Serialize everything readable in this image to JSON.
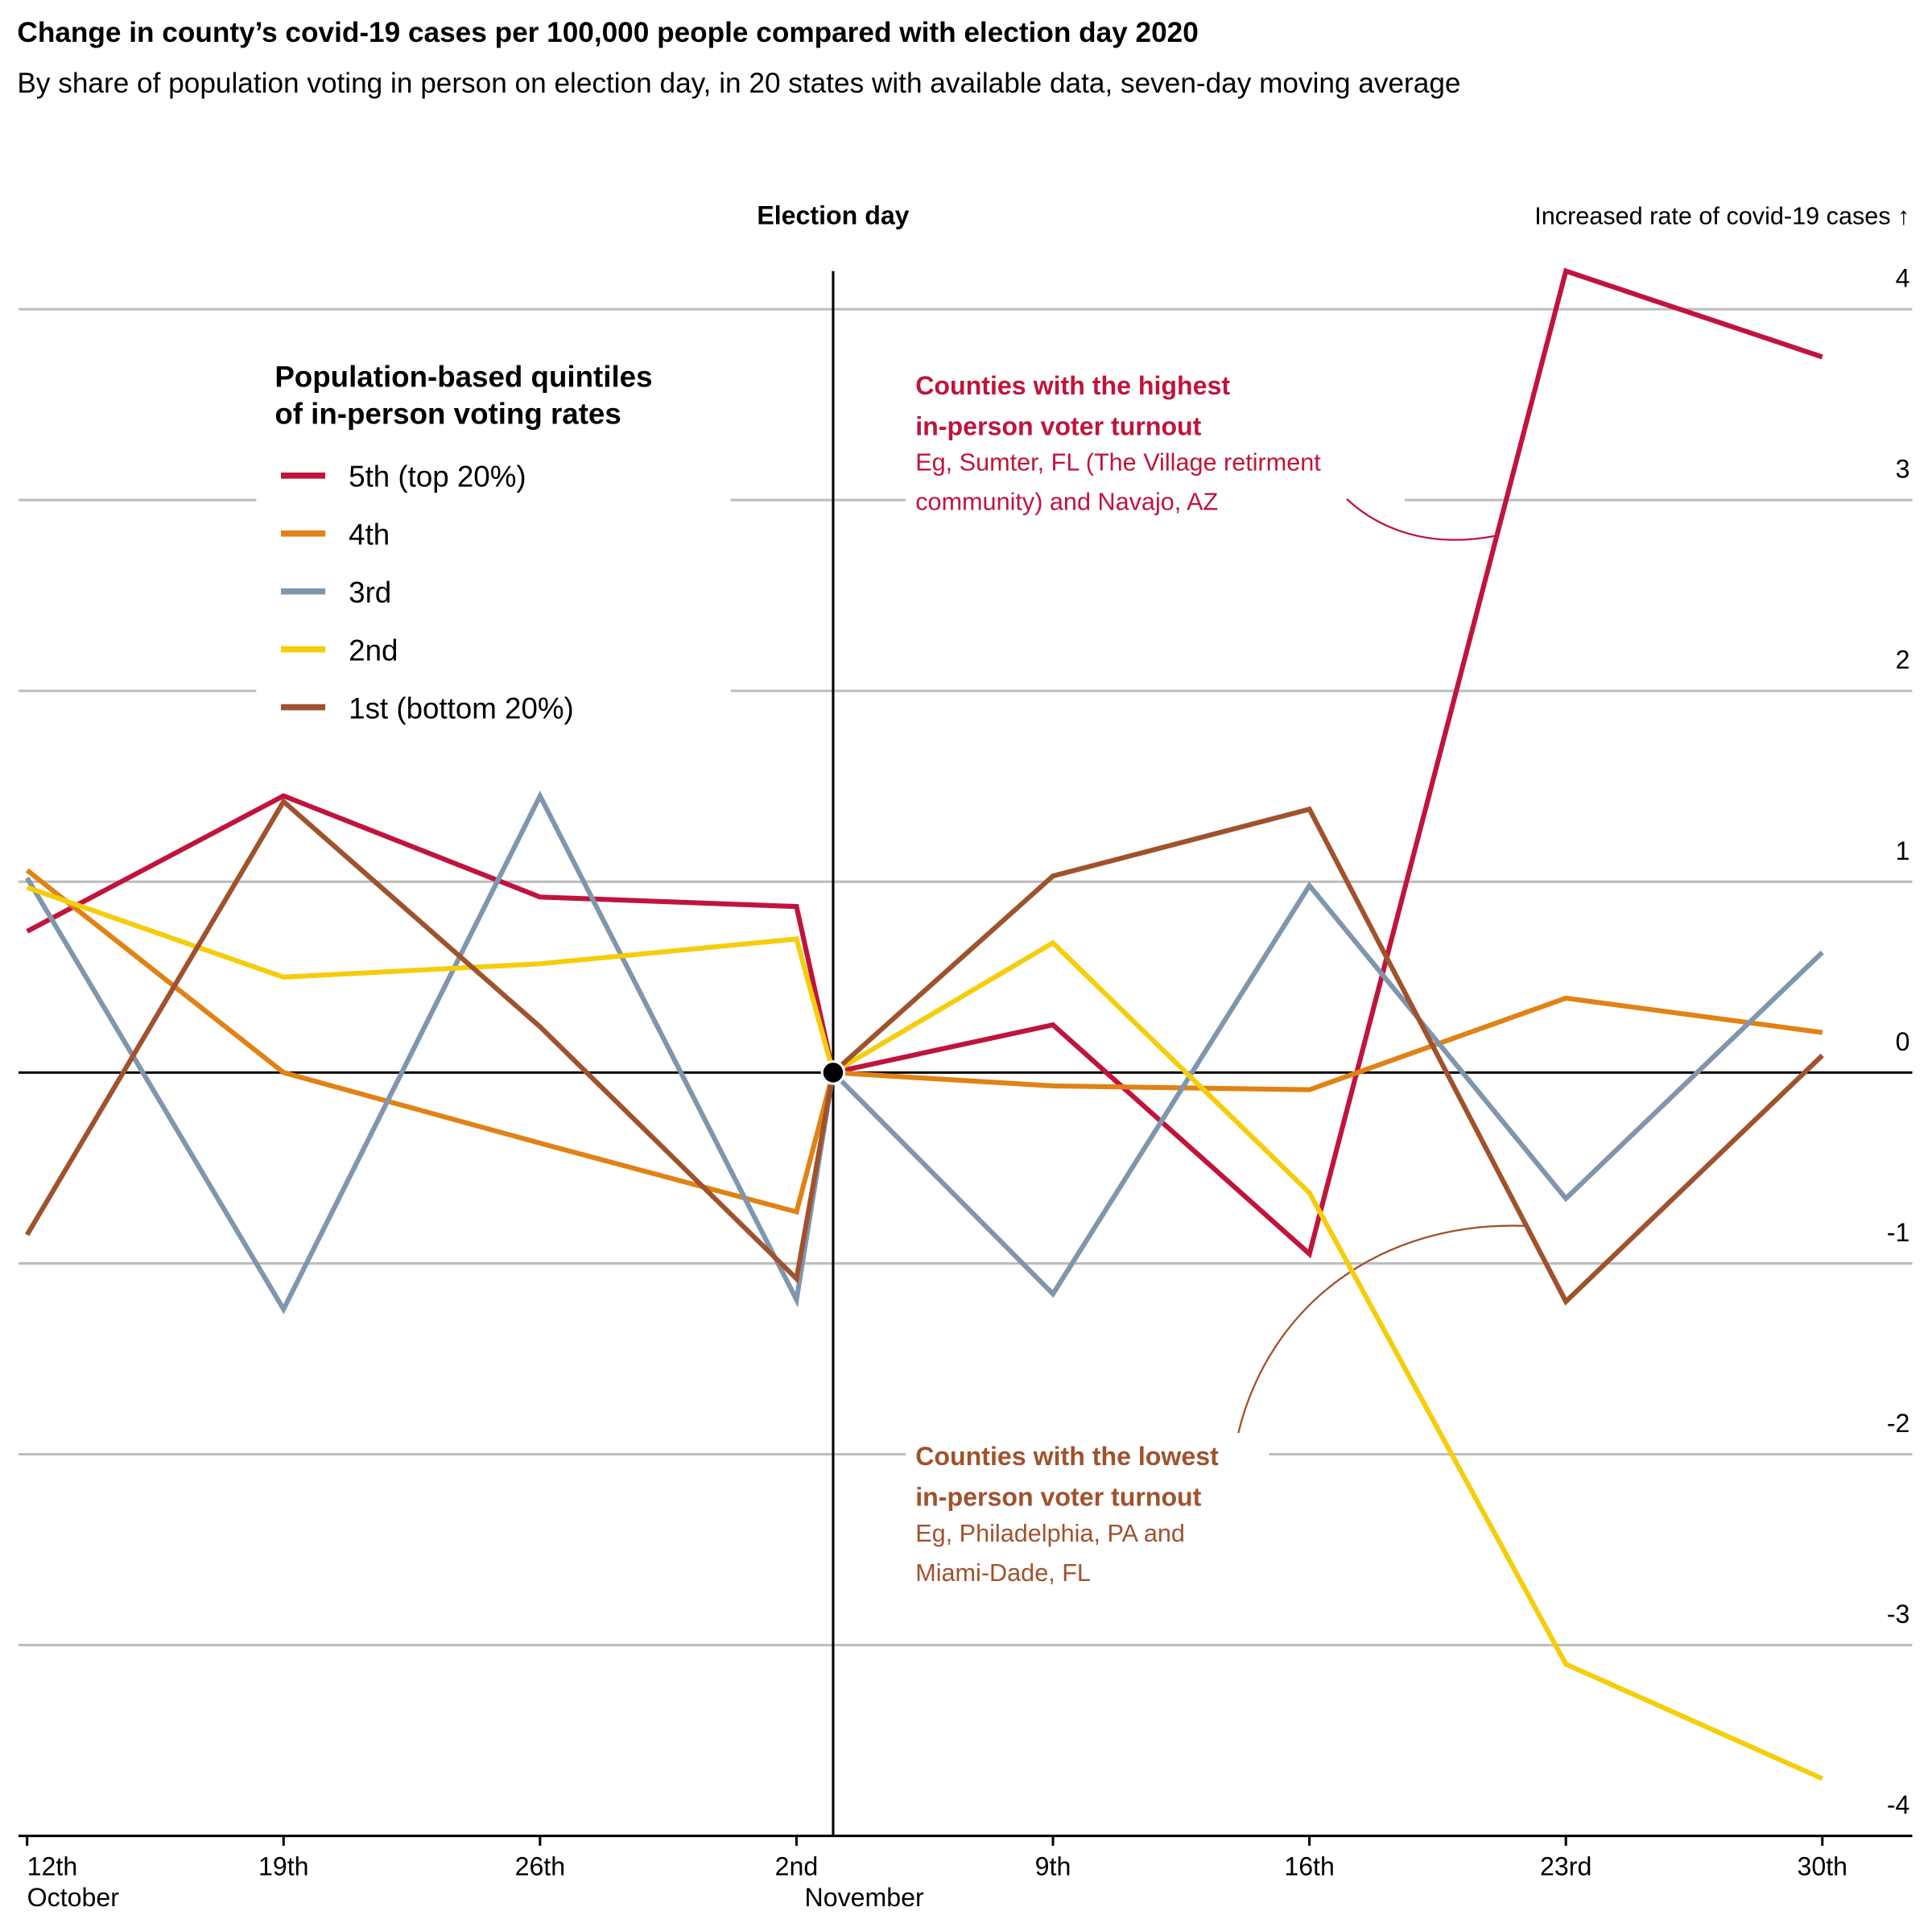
{
  "chart_data": {
    "type": "line",
    "title": "Change in county’s covid-19 cases per 100,000 people compared with election day 2020",
    "subtitle": "By share of population voting in person on election day, in 20 states with available data, seven-day moving average",
    "y_axis_label": "Increased rate of covid-19 cases ↑",
    "x": [
      "10-12",
      "10-19",
      "10-26",
      "11-02",
      "11-03",
      "11-09",
      "11-16",
      "11-23",
      "11-30"
    ],
    "xlim": [
      "10-12",
      "11-30"
    ],
    "xticks": [
      {
        "value": "10-12",
        "label": "12th\nOctober"
      },
      {
        "value": "10-19",
        "label": "19th"
      },
      {
        "value": "10-26",
        "label": "26th"
      },
      {
        "value": "11-02",
        "label": "2nd\nNovember"
      },
      {
        "value": "11-09",
        "label": "9th"
      },
      {
        "value": "11-16",
        "label": "16th"
      },
      {
        "value": "11-23",
        "label": "23rd"
      },
      {
        "value": "11-30",
        "label": "30th"
      }
    ],
    "ylim": [
      -4,
      4.2
    ],
    "yticks": [
      -4,
      -3,
      -2,
      -1,
      0,
      1,
      2,
      3,
      4
    ],
    "grid": true,
    "election_day": {
      "x": "11-03",
      "label": "Election day"
    },
    "legend_title": [
      "Population-based quintiles",
      "of in-person voting rates"
    ],
    "series": [
      {
        "name": "5th (top 20%)",
        "color": "#c0143c",
        "values": [
          0.74,
          1.45,
          0.92,
          0.87,
          0,
          0.25,
          -0.95,
          4.2,
          3.75
        ]
      },
      {
        "name": "4th",
        "color": "#e08214",
        "values": [
          1.06,
          0,
          -0.37,
          -0.73,
          0,
          -0.07,
          -0.09,
          0.39,
          0.21
        ]
      },
      {
        "name": "3rd",
        "color": "#7f96ad",
        "values": [
          1.02,
          -1.24,
          1.45,
          -1.19,
          0,
          -1.16,
          0.98,
          -0.66,
          0.63
        ]
      },
      {
        "name": "2nd",
        "color": "#f5cd0a",
        "values": [
          0.97,
          0.5,
          0.57,
          0.7,
          0,
          0.68,
          -0.63,
          -3.1,
          -3.7
        ]
      },
      {
        "name": "1st (bottom 20%)",
        "color": "#a0522d",
        "values": [
          -0.85,
          1.42,
          0.24,
          -1.08,
          0,
          1.03,
          1.38,
          -1.2,
          0.09
        ]
      }
    ],
    "annotations": [
      {
        "title": [
          "Counties with the highest",
          "in-person voter turnout"
        ],
        "text": [
          "Eg, Sumter, FL (The Village retirment",
          "community) and Navajo, AZ"
        ],
        "color": "#c0143c"
      },
      {
        "title": [
          "Counties with the lowest",
          "in-person voter turnout"
        ],
        "text": [
          "Eg, Philadelphia, PA and",
          "Miami-Dade, FL"
        ],
        "color": "#a0522d"
      }
    ]
  }
}
